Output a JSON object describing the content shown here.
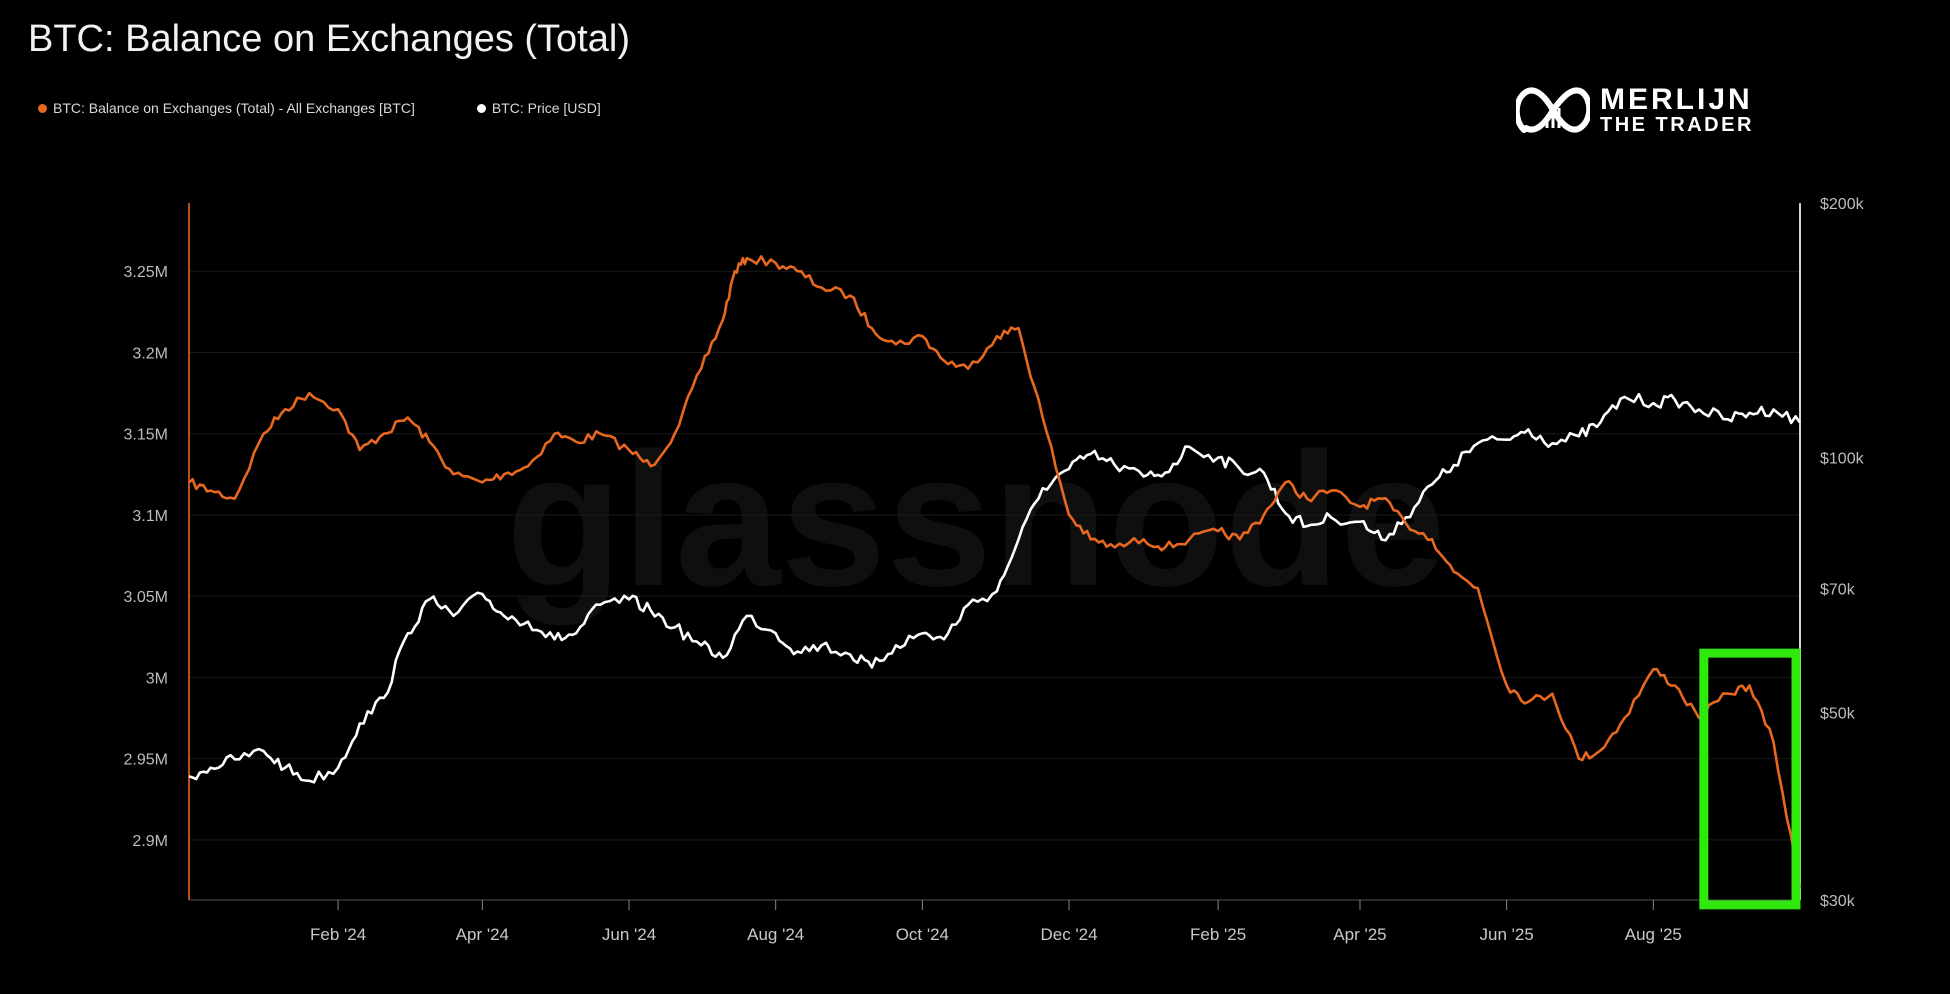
{
  "chart_data": {
    "type": "line",
    "title": "BTC: Balance on Exchanges (Total)",
    "legend_placement": "top-left",
    "grid": false,
    "watermark": "glassnode",
    "brand": {
      "line1": "MERLIJN",
      "line2": "THE TRADER"
    },
    "colors": {
      "balance": "#e8681f",
      "price": "#ffffff",
      "highlight": "#2ee80e",
      "background": "#000000"
    },
    "x_ticks": [
      "Feb '24",
      "Apr '24",
      "Jun '24",
      "Aug '24",
      "Oct '24",
      "Dec '24",
      "Feb '25",
      "Apr '25",
      "Jun '25",
      "Aug '25"
    ],
    "x_tick_dates": [
      "2024-02-01",
      "2024-04-01",
      "2024-06-01",
      "2024-08-01",
      "2024-10-01",
      "2024-12-01",
      "2025-02-01",
      "2025-04-01",
      "2025-06-01",
      "2025-08-01"
    ],
    "xlim": [
      "2023-12-01",
      "2025-10-01"
    ],
    "y_left": {
      "ticks": [
        "3.25M",
        "3.2M",
        "3.15M",
        "3.1M",
        "3.05M",
        "3M",
        "2.95M",
        "2.9M"
      ],
      "tick_values": [
        3.25,
        3.2,
        3.15,
        3.1,
        3.05,
        3.0,
        2.95,
        2.9
      ],
      "ylim": [
        2.863,
        3.292
      ],
      "unit": "BTC (millions)"
    },
    "y_right": {
      "scale": "log",
      "ticks": [
        "$200k",
        "$100k",
        "$70k",
        "$50k",
        "$30k"
      ],
      "tick_values": [
        200000,
        100000,
        70000,
        50000,
        30000
      ],
      "ylim": [
        30000,
        200000
      ]
    },
    "highlight_box": {
      "x_range": [
        "2025-08-22",
        "2025-10-01"
      ],
      "y_range_left": [
        2.86,
        3.01
      ]
    },
    "series": [
      {
        "name": "BTC: Balance on Exchanges (Total) - All Exchanges [BTC]",
        "axis": "left",
        "x": [
          "2023-12-01",
          "2023-12-10",
          "2023-12-20",
          "2024-01-01",
          "2024-01-10",
          "2024-01-20",
          "2024-02-01",
          "2024-02-10",
          "2024-02-20",
          "2024-03-01",
          "2024-03-10",
          "2024-03-20",
          "2024-04-01",
          "2024-04-10",
          "2024-04-20",
          "2024-05-01",
          "2024-05-10",
          "2024-05-20",
          "2024-06-01",
          "2024-06-10",
          "2024-06-20",
          "2024-07-01",
          "2024-07-10",
          "2024-07-15",
          "2024-07-20",
          "2024-08-01",
          "2024-08-10",
          "2024-08-20",
          "2024-09-01",
          "2024-09-10",
          "2024-09-20",
          "2024-10-01",
          "2024-10-10",
          "2024-10-20",
          "2024-11-01",
          "2024-11-10",
          "2024-11-20",
          "2024-12-01",
          "2024-12-10",
          "2024-12-20",
          "2025-01-01",
          "2025-01-10",
          "2025-01-20",
          "2025-02-01",
          "2025-02-10",
          "2025-02-20",
          "2025-03-01",
          "2025-03-10",
          "2025-03-20",
          "2025-04-01",
          "2025-04-10",
          "2025-04-20",
          "2025-05-01",
          "2025-05-10",
          "2025-05-20",
          "2025-06-01",
          "2025-06-10",
          "2025-06-20",
          "2025-07-01",
          "2025-07-10",
          "2025-07-20",
          "2025-08-01",
          "2025-08-10",
          "2025-08-20",
          "2025-09-01",
          "2025-09-10",
          "2025-09-20",
          "2025-10-01"
        ],
        "values": [
          3.12,
          3.115,
          3.11,
          3.15,
          3.165,
          3.175,
          3.165,
          3.14,
          3.15,
          3.16,
          3.145,
          3.125,
          3.12,
          3.125,
          3.13,
          3.15,
          3.145,
          3.15,
          3.14,
          3.13,
          3.15,
          3.19,
          3.22,
          3.25,
          3.258,
          3.255,
          3.25,
          3.24,
          3.235,
          3.215,
          3.205,
          3.21,
          3.195,
          3.19,
          3.21,
          3.215,
          3.16,
          3.1,
          3.085,
          3.08,
          3.085,
          3.08,
          3.085,
          3.09,
          3.085,
          3.1,
          3.12,
          3.11,
          3.115,
          3.105,
          3.11,
          3.095,
          3.085,
          3.065,
          3.055,
          2.995,
          2.985,
          2.99,
          2.95,
          2.955,
          2.975,
          3.005,
          2.995,
          2.975,
          2.99,
          2.995,
          2.96,
          2.87
        ]
      },
      {
        "name": "BTC: Price [USD]",
        "axis": "right",
        "x": [
          "2023-12-01",
          "2023-12-10",
          "2023-12-20",
          "2024-01-01",
          "2024-01-10",
          "2024-01-20",
          "2024-02-01",
          "2024-02-10",
          "2024-02-20",
          "2024-03-01",
          "2024-03-10",
          "2024-03-20",
          "2024-04-01",
          "2024-04-10",
          "2024-04-20",
          "2024-05-01",
          "2024-05-10",
          "2024-05-20",
          "2024-06-01",
          "2024-06-10",
          "2024-06-20",
          "2024-07-01",
          "2024-07-10",
          "2024-07-20",
          "2024-08-01",
          "2024-08-10",
          "2024-08-20",
          "2024-09-01",
          "2024-09-10",
          "2024-09-20",
          "2024-10-01",
          "2024-10-10",
          "2024-10-20",
          "2024-11-01",
          "2024-11-10",
          "2024-11-20",
          "2024-12-01",
          "2024-12-10",
          "2024-12-20",
          "2025-01-01",
          "2025-01-10",
          "2025-01-20",
          "2025-02-01",
          "2025-02-10",
          "2025-02-20",
          "2025-03-01",
          "2025-03-10",
          "2025-03-20",
          "2025-04-01",
          "2025-04-10",
          "2025-04-20",
          "2025-05-01",
          "2025-05-10",
          "2025-05-20",
          "2025-06-01",
          "2025-06-10",
          "2025-06-20",
          "2025-07-01",
          "2025-07-10",
          "2025-07-20",
          "2025-08-01",
          "2025-08-10",
          "2025-08-20",
          "2025-09-01",
          "2025-09-10",
          "2025-09-20",
          "2025-10-01"
        ],
        "values": [
          42000,
          43000,
          44000,
          45000,
          43000,
          41500,
          43000,
          48500,
          52000,
          62000,
          68000,
          65000,
          69000,
          65000,
          64000,
          61000,
          62000,
          67000,
          68000,
          66000,
          63000,
          60000,
          58000,
          65000,
          62000,
          59000,
          60000,
          58500,
          56500,
          60000,
          62000,
          61000,
          67000,
          69500,
          80000,
          92000,
          97000,
          101000,
          98000,
          95000,
          96000,
          103000,
          100000,
          97000,
          96000,
          86000,
          83000,
          85000,
          84000,
          80000,
          85000,
          93000,
          98000,
          104000,
          105000,
          108000,
          104000,
          106000,
          110000,
          118000,
          116000,
          117000,
          114000,
          111000,
          113000,
          114000,
          110000
        ]
      }
    ]
  }
}
